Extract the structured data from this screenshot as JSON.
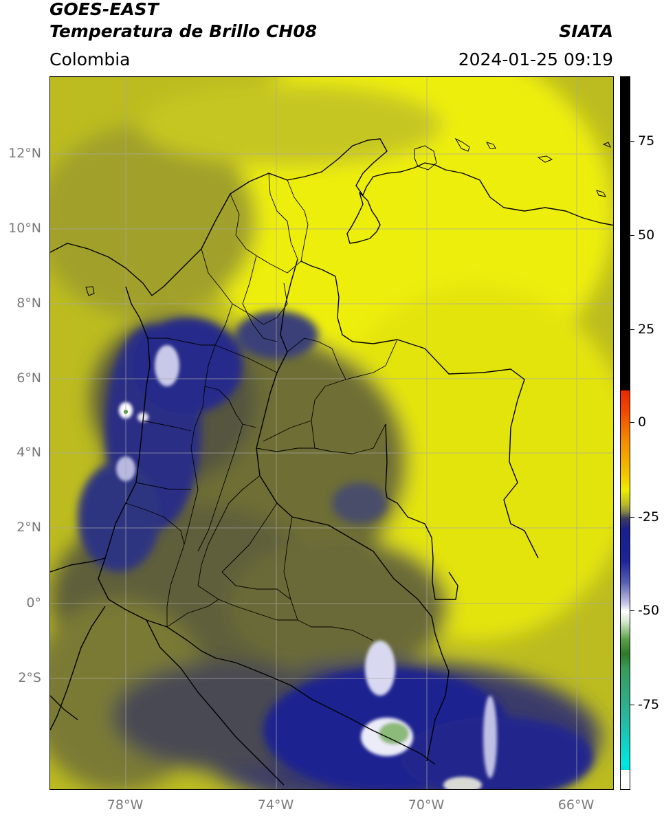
{
  "header": {
    "satellite": "GOES-EAST",
    "product": "Temperatura de Brillo CH08",
    "region": "Colombia",
    "organization": "SIATA",
    "datetime": "2024-01-25 09:19"
  },
  "map": {
    "lat_labels": [
      "12°N",
      "10°N",
      "8°N",
      "6°N",
      "4°N",
      "2°N",
      "0°",
      "2°S"
    ],
    "lon_labels": [
      "78°W",
      "74°W",
      "70°W",
      "66°W"
    ],
    "extent": {
      "lon_min": -80,
      "lon_max": -65,
      "lat_min": -5,
      "lat_max": 14
    },
    "colors": {
      "warm_yellow": "#f2f200",
      "olive": "#8a8a30",
      "dark_olive": "#5e5e38",
      "navy": "#1a1f8c",
      "cold_white": "#f4f4fa",
      "green": "#5aa04a"
    }
  },
  "colorbar": {
    "range": [
      -95,
      90
    ],
    "tick_values": [
      75,
      50,
      25,
      0,
      -25,
      -50,
      -75
    ],
    "tick_labels": [
      "75",
      "50",
      "25",
      "0",
      "-25",
      "-50",
      "-75"
    ]
  }
}
